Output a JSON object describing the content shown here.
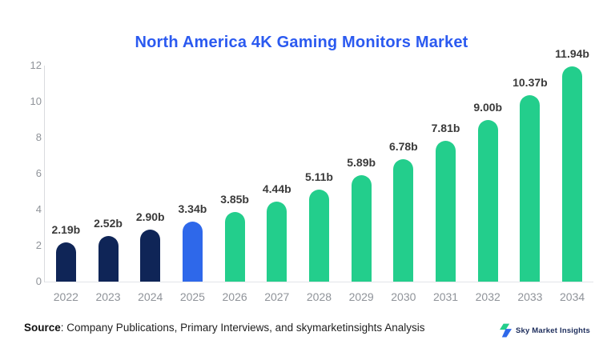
{
  "title": "North America 4K Gaming Monitors Market",
  "chart_data": {
    "type": "bar",
    "title": "North America 4K Gaming Monitors Market",
    "categories": [
      "2022",
      "2023",
      "2024",
      "2025",
      "2026",
      "2027",
      "2028",
      "2029",
      "2030",
      "2031",
      "2032",
      "2033",
      "2034"
    ],
    "values": [
      2.19,
      2.52,
      2.9,
      3.34,
      3.85,
      4.44,
      5.11,
      5.89,
      6.78,
      7.81,
      9.0,
      10.37,
      11.94
    ],
    "value_labels": [
      "2.19b",
      "2.52b",
      "2.90b",
      "3.34b",
      "3.85b",
      "4.44b",
      "5.11b",
      "5.89b",
      "6.78b",
      "7.81b",
      "9.00b",
      "10.37b",
      "11.94b"
    ],
    "xlabel": "",
    "ylabel": "",
    "ylim": [
      0,
      12
    ],
    "yticks": [
      12,
      10,
      8,
      6,
      4,
      2,
      0
    ],
    "grid": false,
    "legend_position": "none",
    "bar_colors": [
      "#0f2557",
      "#0f2557",
      "#0f2557",
      "#2e68ea",
      "#23ce8c",
      "#23ce8c",
      "#23ce8c",
      "#23ce8c",
      "#23ce8c",
      "#23ce8c",
      "#23ce8c",
      "#23ce8c",
      "#23ce8c"
    ]
  },
  "colors": {
    "title": "#2b5af0",
    "historical_bar": "#0f2557",
    "base_year_bar": "#2e68ea",
    "forecast_bar": "#23ce8c",
    "axis_text": "#8f9399",
    "value_text": "#3a3a3a",
    "axis_line": "#d9dbde",
    "logo_green": "#23ce8c",
    "logo_blue": "#2e68ea",
    "logo_text": "#1c2c5b"
  },
  "footer": {
    "source_label": "Source",
    "source_rest": ": Company Publications, Primary Interviews, and skymarketinsights Analysis",
    "brand": "Sky Market Insights"
  }
}
